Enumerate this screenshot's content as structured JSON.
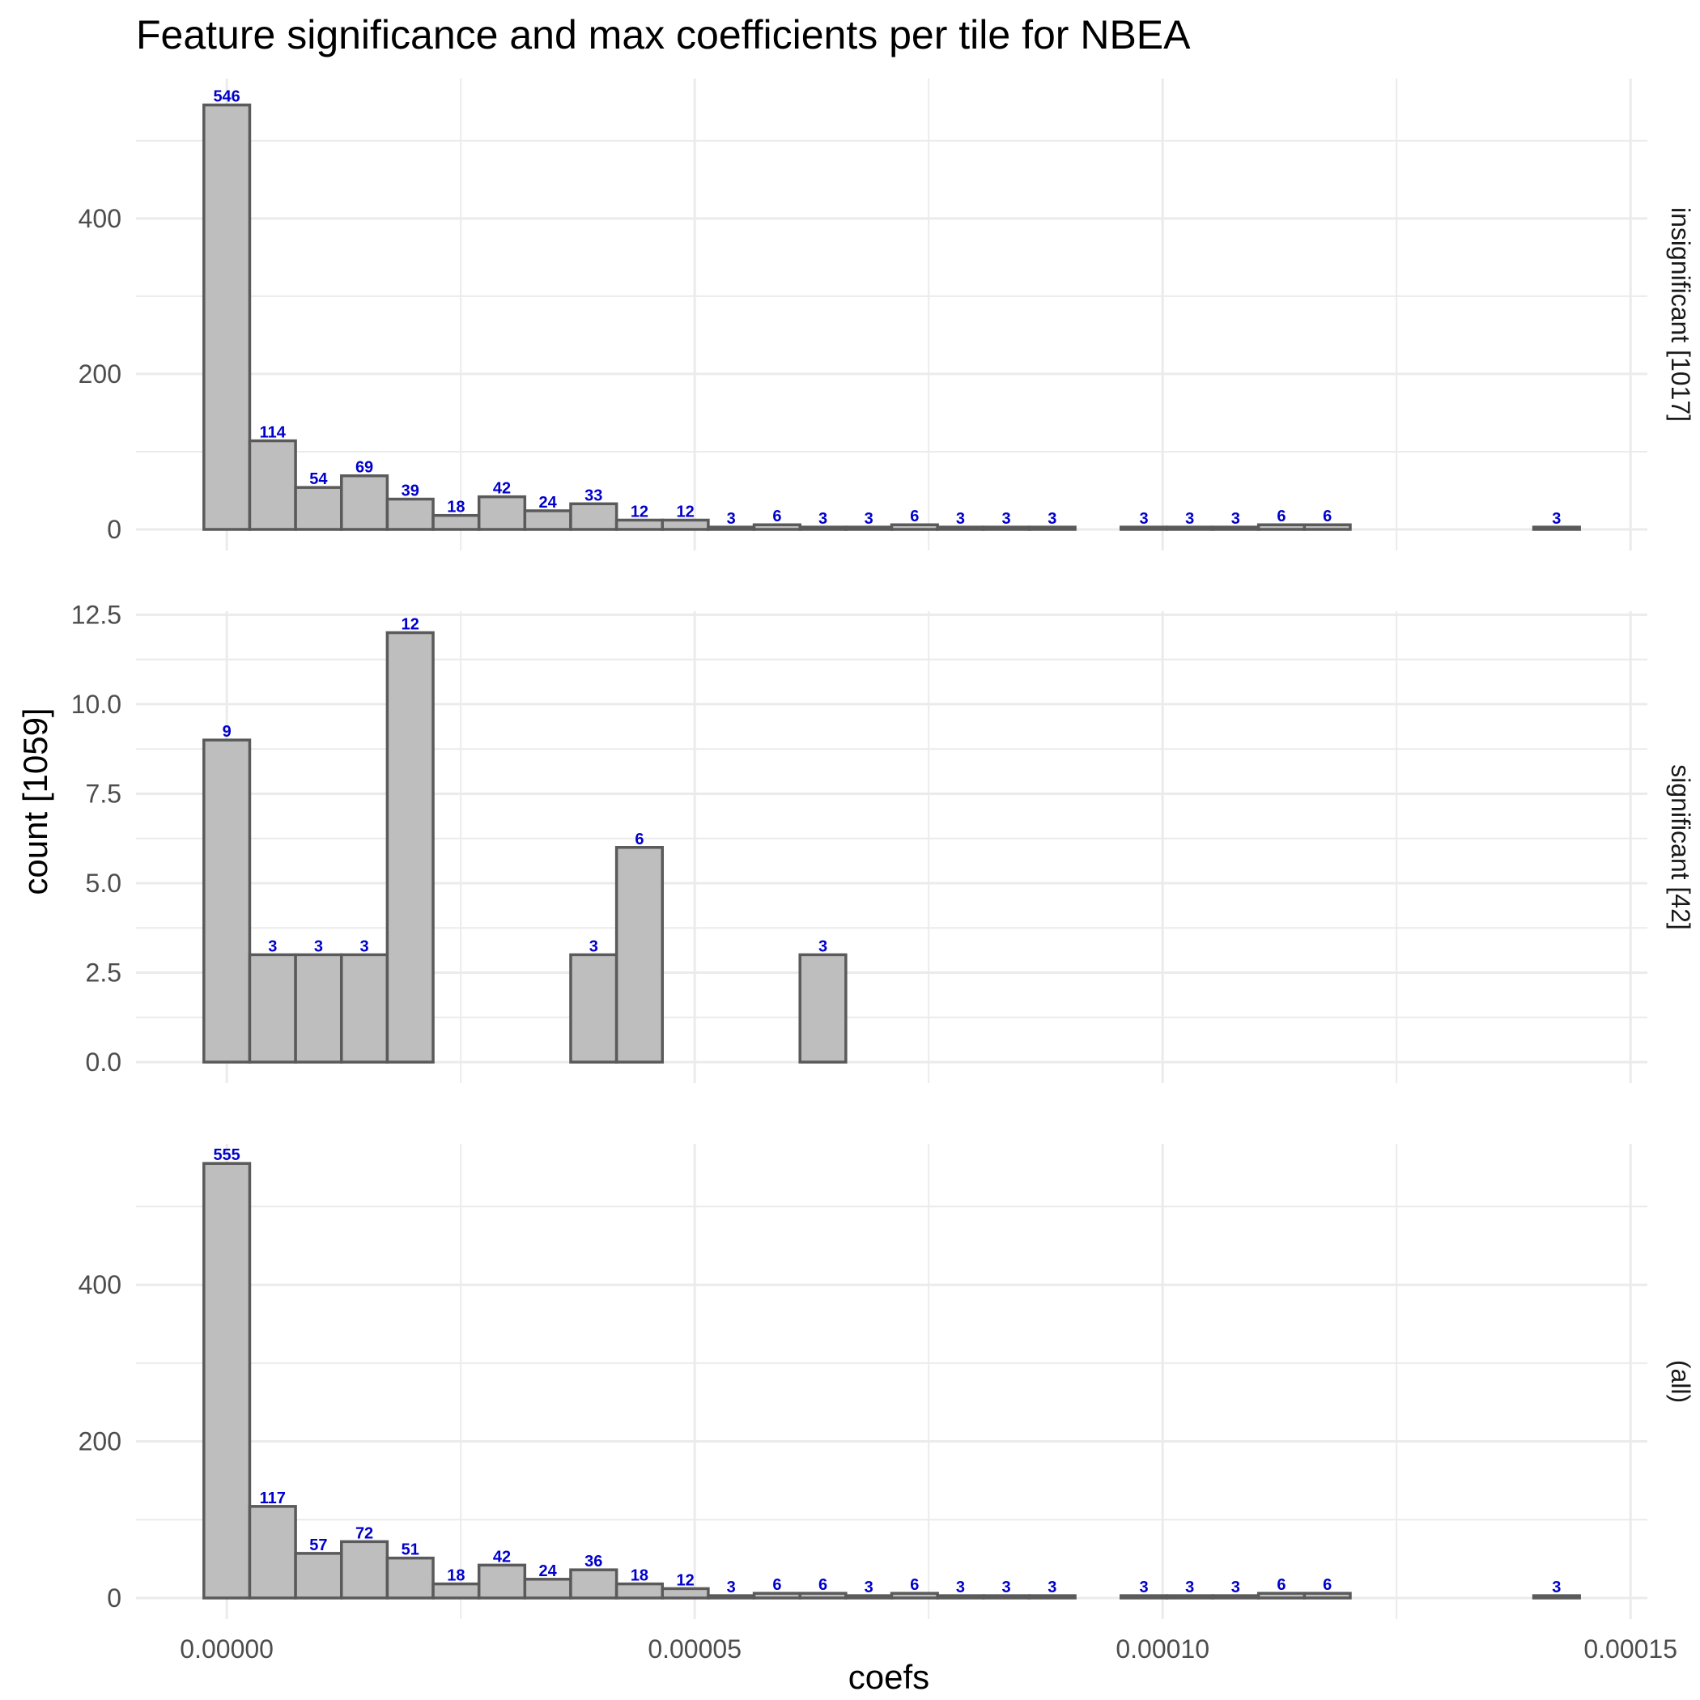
{
  "chart_data": {
    "type": "bar",
    "title": "Feature significance and max coefficients per tile for NBEA",
    "xlabel": "coefs",
    "ylabel": "count [1059]",
    "x_ticks": [
      "0.00000",
      "0.00005",
      "0.00010",
      "0.00015"
    ],
    "x_tick_values": [
      0,
      5e-05,
      0.0001,
      0.00015
    ],
    "xlim": [
      -9.7e-06,
      0.0001518
    ],
    "bin_width": 4.9e-06,
    "bin_centers": [
      0,
      4.9e-06,
      9.8e-06,
      1.47e-05,
      1.96e-05,
      2.45e-05,
      2.94e-05,
      3.43e-05,
      3.92e-05,
      4.41e-05,
      4.9e-05,
      5.39e-05,
      5.88e-05,
      6.37e-05,
      6.86e-05,
      7.35e-05,
      7.84e-05,
      8.33e-05,
      8.82e-05,
      9.31e-05,
      9.8e-05,
      0.0001029,
      0.0001078,
      0.0001127,
      0.0001176,
      0.0001225,
      0.0001274,
      0.0001323,
      0.0001372,
      0.0001421
    ],
    "grid": true,
    "panels": [
      {
        "strip": "insignificant [1017]",
        "ylim": [
          0,
          580
        ],
        "y_ticks": [
          "0",
          "200",
          "400"
        ],
        "y_tick_values": [
          0,
          200,
          400
        ],
        "values": [
          546,
          114,
          54,
          69,
          39,
          18,
          42,
          24,
          33,
          12,
          12,
          3,
          6,
          3,
          3,
          6,
          3,
          3,
          3,
          0,
          3,
          3,
          3,
          6,
          6,
          0,
          0,
          0,
          0,
          3
        ],
        "labels": [
          "546",
          "114",
          "54",
          "69",
          "39",
          "18",
          "42",
          "24",
          "33",
          "12",
          "12",
          "3",
          "6",
          "3",
          "3",
          "6",
          "3",
          "3",
          "3",
          "",
          "3",
          "3",
          "3",
          "6",
          "6",
          "",
          "",
          "",
          "",
          "3"
        ]
      },
      {
        "strip": "significant [42]",
        "ylim": [
          0,
          12.6
        ],
        "y_ticks": [
          "0.0",
          "2.5",
          "5.0",
          "7.5",
          "10.0",
          "12.5"
        ],
        "y_tick_values": [
          0,
          2.5,
          5,
          7.5,
          10,
          12.5
        ],
        "values": [
          9,
          3,
          3,
          3,
          12,
          0,
          0,
          0,
          3,
          6,
          0,
          0,
          0,
          3,
          0,
          0,
          0,
          0,
          0,
          0,
          0,
          0,
          0,
          0,
          0,
          0,
          0,
          0,
          0,
          0
        ],
        "labels": [
          "9",
          "3",
          "3",
          "3",
          "12",
          "",
          "",
          "",
          "3",
          "6",
          "",
          "",
          "",
          "3",
          "",
          "",
          "",
          "",
          "",
          "",
          "",
          "",
          "",
          "",
          "",
          "",
          "",
          "",
          "",
          ""
        ]
      },
      {
        "strip": "(all)",
        "ylim": [
          0,
          580
        ],
        "y_ticks": [
          "0",
          "200",
          "400"
        ],
        "y_tick_values": [
          0,
          200,
          400
        ],
        "values": [
          555,
          117,
          57,
          72,
          51,
          18,
          42,
          24,
          36,
          18,
          12,
          3,
          6,
          6,
          3,
          6,
          3,
          3,
          3,
          0,
          3,
          3,
          3,
          6,
          6,
          0,
          0,
          0,
          0,
          3
        ],
        "labels": [
          "555",
          "117",
          "57",
          "72",
          "51",
          "18",
          "42",
          "24",
          "36",
          "18",
          "12",
          "3",
          "6",
          "6",
          "3",
          "6",
          "3",
          "3",
          "3",
          "",
          "3",
          "3",
          "3",
          "6",
          "6",
          "",
          "",
          "",
          "",
          "3"
        ]
      }
    ],
    "colors": {
      "bar_fill": "#bebebe",
      "bar_stroke": "#5a5a5a",
      "label": "#0000cc",
      "grid": "#ebebeb"
    }
  }
}
